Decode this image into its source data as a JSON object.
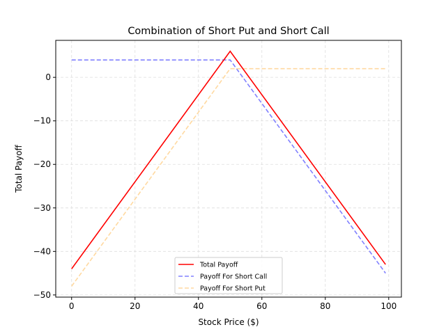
{
  "chart_data": {
    "type": "line",
    "title": "Combination of Short Put and Short Call",
    "xlabel": "Stock Price ($)",
    "ylabel": "Total Payoff",
    "xlim": [
      -5,
      104
    ],
    "ylim": [
      -50.5,
      8.5
    ],
    "xticks": [
      0,
      20,
      40,
      60,
      80,
      100
    ],
    "yticks": [
      0,
      -10,
      -20,
      -30,
      -40,
      -50
    ],
    "xtick_labels": [
      "0",
      "20",
      "40",
      "60",
      "80",
      "100"
    ],
    "ytick_labels": [
      "0",
      "−10",
      "−20",
      "−30",
      "−40",
      "−50"
    ],
    "grid": true,
    "legend_position": "lower-center",
    "series": [
      {
        "name": "Total Payoff",
        "color": "#ff0000",
        "style": "solid",
        "x": [
          0,
          50,
          99
        ],
        "y": [
          -44,
          6,
          -43
        ]
      },
      {
        "name": "Payoff For Short Call",
        "color": "#8080ff",
        "style": "dashed",
        "x": [
          0,
          50,
          99
        ],
        "y": [
          4,
          4,
          -45
        ]
      },
      {
        "name": "Payoff For Short Put",
        "color": "#ffd9a0",
        "style": "dashed",
        "x": [
          0,
          50,
          99
        ],
        "y": [
          -48,
          2,
          2
        ]
      }
    ]
  }
}
